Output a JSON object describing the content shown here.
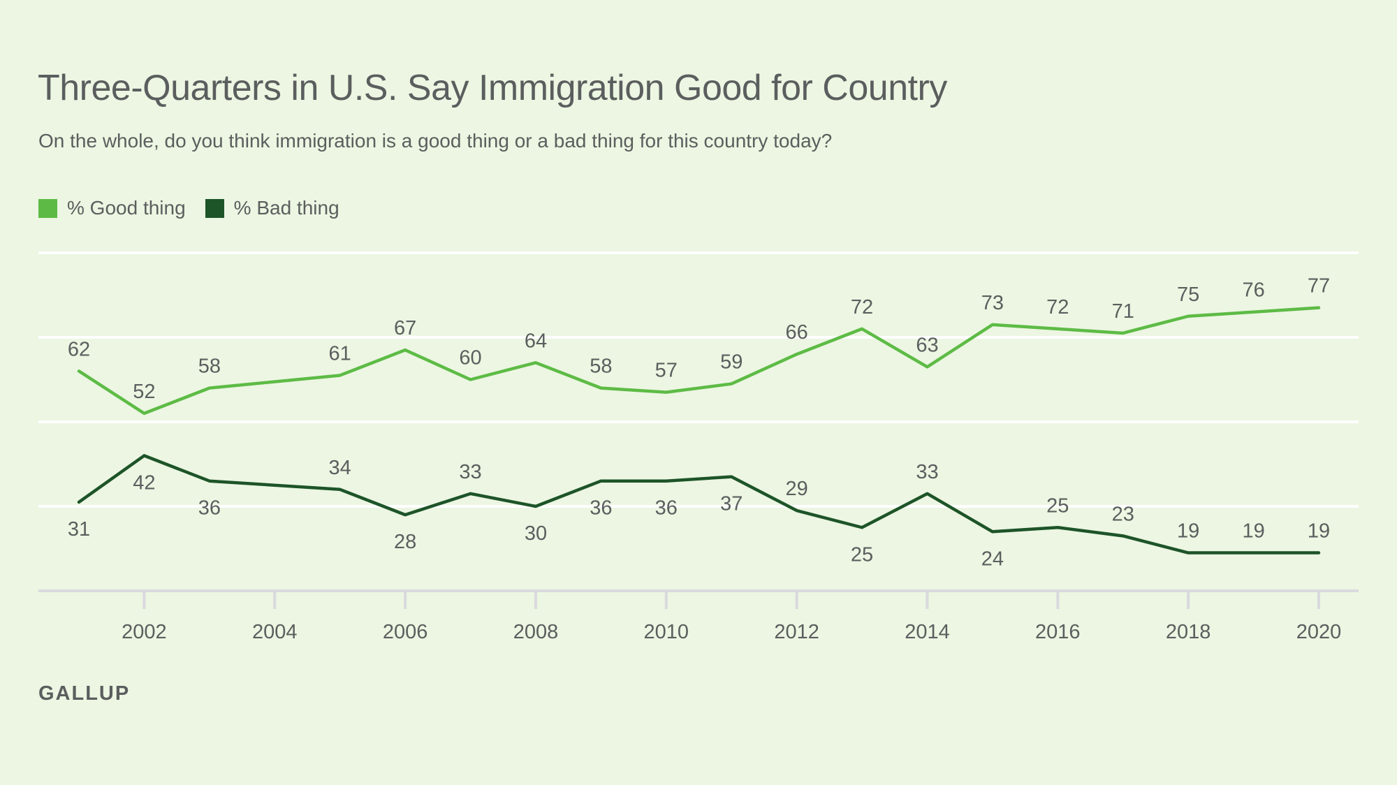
{
  "title": "Three-Quarters in U.S. Say Immigration Good for Country",
  "subtitle": "On the whole, do you think immigration is a good thing or a bad thing for this country today?",
  "source": "GALLUP",
  "colors": {
    "background": "#ecf6e2",
    "good": "#5dbb45",
    "bad": "#1d5428",
    "grid": "#ffffff",
    "axis": "#d9d9de",
    "text": "#5b5e5e"
  },
  "chart_data": {
    "type": "line",
    "title": "Three-Quarters in U.S. Say Immigration Good for Country",
    "subtitle": "On the whole, do you think immigration is a good thing or a bad thing for this country today?",
    "xlabel": "",
    "ylabel": "",
    "xlim": [
      2001,
      2020
    ],
    "ylim": [
      10,
      90
    ],
    "xticks": [
      "2002",
      "2004",
      "2006",
      "2008",
      "2010",
      "2012",
      "2014",
      "2016",
      "2018",
      "2020"
    ],
    "grid": true,
    "legend_position": "top-left",
    "series": [
      {
        "name": "% Good thing",
        "color": "#5dbb45",
        "points": [
          {
            "x": 2001,
            "y": 62
          },
          {
            "x": 2002,
            "y": 52
          },
          {
            "x": 2003,
            "y": 58
          },
          {
            "x": 2005,
            "y": 61
          },
          {
            "x": 2006,
            "y": 67
          },
          {
            "x": 2007,
            "y": 60
          },
          {
            "x": 2008,
            "y": 64
          },
          {
            "x": 2009,
            "y": 58
          },
          {
            "x": 2010,
            "y": 57
          },
          {
            "x": 2011,
            "y": 59
          },
          {
            "x": 2012,
            "y": 66
          },
          {
            "x": 2013,
            "y": 72
          },
          {
            "x": 2014,
            "y": 63
          },
          {
            "x": 2015,
            "y": 73
          },
          {
            "x": 2016,
            "y": 72
          },
          {
            "x": 2017,
            "y": 71
          },
          {
            "x": 2018,
            "y": 75
          },
          {
            "x": 2019,
            "y": 76
          },
          {
            "x": 2020,
            "y": 77
          }
        ]
      },
      {
        "name": "% Bad thing",
        "color": "#1d5428",
        "points": [
          {
            "x": 2001,
            "y": 31
          },
          {
            "x": 2002,
            "y": 42
          },
          {
            "x": 2003,
            "y": 36
          },
          {
            "x": 2005,
            "y": 34
          },
          {
            "x": 2006,
            "y": 28
          },
          {
            "x": 2007,
            "y": 33
          },
          {
            "x": 2008,
            "y": 30
          },
          {
            "x": 2009,
            "y": 36
          },
          {
            "x": 2010,
            "y": 36
          },
          {
            "x": 2011,
            "y": 37
          },
          {
            "x": 2012,
            "y": 29
          },
          {
            "x": 2013,
            "y": 25
          },
          {
            "x": 2014,
            "y": 33
          },
          {
            "x": 2015,
            "y": 24
          },
          {
            "x": 2016,
            "y": 25
          },
          {
            "x": 2017,
            "y": 23
          },
          {
            "x": 2018,
            "y": 19
          },
          {
            "x": 2019,
            "y": 19
          },
          {
            "x": 2020,
            "y": 19
          }
        ]
      }
    ]
  }
}
